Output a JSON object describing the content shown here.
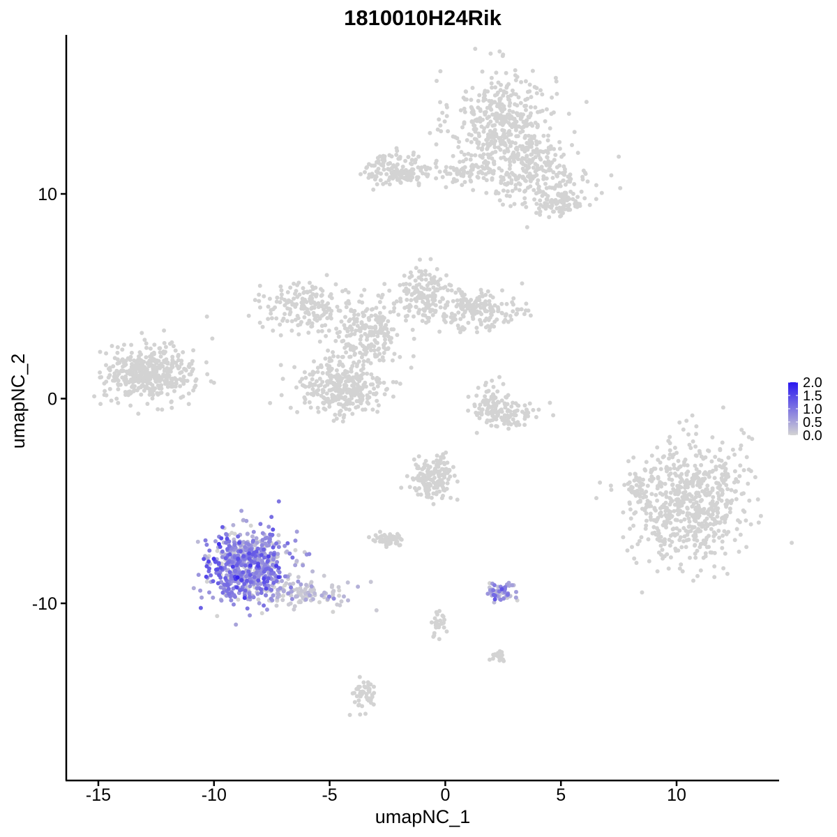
{
  "chart_data": {
    "type": "scatter",
    "title": "1810010H24Rik",
    "xlabel": "umapNC_1",
    "ylabel": "umapNC_2",
    "xlim": [
      -16.5,
      14.5
    ],
    "ylim": [
      -18.5,
      17.8
    ],
    "x_ticks": [
      -15,
      -10,
      -5,
      0,
      5,
      10
    ],
    "x_tick_labels": [
      "-15",
      "-10",
      "-5",
      "0",
      "5",
      "10"
    ],
    "y_ticks": [
      -10,
      0,
      10
    ],
    "y_tick_labels": [
      "-10",
      "0",
      "10"
    ],
    "grid": false,
    "legend_placement": "right",
    "color_scale": {
      "low_color": "#d3d3d3",
      "high_color": "#2a18f0",
      "range": [
        0,
        2.0
      ],
      "ticks": [
        0.0,
        0.5,
        1.0,
        1.5,
        2.0
      ],
      "tick_labels": [
        "0.0",
        "0.5",
        "1.0",
        "1.5",
        "2.0"
      ]
    },
    "clusters": [
      {
        "cx": 2.5,
        "cy": 13.5,
        "sx": 1.4,
        "sy": 1.6,
        "n": 420,
        "expr": 0
      },
      {
        "cx": 3.8,
        "cy": 11.0,
        "sx": 1.6,
        "sy": 1.0,
        "n": 250,
        "expr": 0
      },
      {
        "cx": -2.0,
        "cy": 11.2,
        "sx": 0.9,
        "sy": 0.5,
        "n": 150,
        "expr": 0
      },
      {
        "cx": 0.8,
        "cy": 11.0,
        "sx": 1.0,
        "sy": 0.3,
        "n": 60,
        "expr": 0
      },
      {
        "cx": 5.0,
        "cy": 9.5,
        "sx": 0.6,
        "sy": 0.4,
        "n": 80,
        "expr": 0
      },
      {
        "cx": -12.8,
        "cy": 1.2,
        "sx": 1.2,
        "sy": 0.8,
        "n": 420,
        "expr": 0
      },
      {
        "cx": -6.0,
        "cy": 4.5,
        "sx": 1.3,
        "sy": 0.7,
        "n": 180,
        "expr": 0
      },
      {
        "cx": -4.5,
        "cy": 0.5,
        "sx": 1.2,
        "sy": 0.9,
        "n": 300,
        "expr": 0
      },
      {
        "cx": -3.5,
        "cy": 3.0,
        "sx": 1.0,
        "sy": 1.0,
        "n": 200,
        "expr": 0
      },
      {
        "cx": -1.0,
        "cy": 5.0,
        "sx": 0.9,
        "sy": 0.8,
        "n": 160,
        "expr": 0
      },
      {
        "cx": 1.5,
        "cy": 4.3,
        "sx": 1.2,
        "sy": 0.6,
        "n": 170,
        "expr": 0
      },
      {
        "cx": 2.0,
        "cy": -0.3,
        "sx": 0.6,
        "sy": 0.7,
        "n": 90,
        "expr": 0
      },
      {
        "cx": 3.0,
        "cy": -0.7,
        "sx": 0.8,
        "sy": 0.4,
        "n": 60,
        "expr": 0
      },
      {
        "cx": 10.5,
        "cy": -5.0,
        "sx": 1.5,
        "sy": 1.9,
        "n": 650,
        "expr": 0
      },
      {
        "cx": 8.3,
        "cy": -4.5,
        "sx": 0.2,
        "sy": 0.5,
        "n": 30,
        "expr": 0
      },
      {
        "cx": -0.5,
        "cy": -3.9,
        "sx": 0.6,
        "sy": 0.6,
        "n": 160,
        "expr": 0
      },
      {
        "cx": -2.4,
        "cy": -6.9,
        "sx": 0.4,
        "sy": 0.2,
        "n": 60,
        "expr": 0
      },
      {
        "cx": -8.5,
        "cy": -8.2,
        "sx": 1.1,
        "sy": 1.1,
        "n": 650,
        "expr": 0.75
      },
      {
        "cx": -6.0,
        "cy": -9.5,
        "sx": 1.2,
        "sy": 0.4,
        "n": 120,
        "expr": 0.1
      },
      {
        "cx": 2.4,
        "cy": -9.4,
        "sx": 0.4,
        "sy": 0.3,
        "n": 60,
        "expr": 0.55
      },
      {
        "cx": -3.5,
        "cy": -14.5,
        "sx": 0.3,
        "sy": 0.5,
        "n": 50,
        "expr": 0
      },
      {
        "cx": -0.3,
        "cy": -11.0,
        "sx": 0.2,
        "sy": 0.5,
        "n": 30,
        "expr": 0
      },
      {
        "cx": 2.3,
        "cy": -12.5,
        "sx": 0.2,
        "sy": 0.2,
        "n": 20,
        "expr": 0
      }
    ]
  }
}
